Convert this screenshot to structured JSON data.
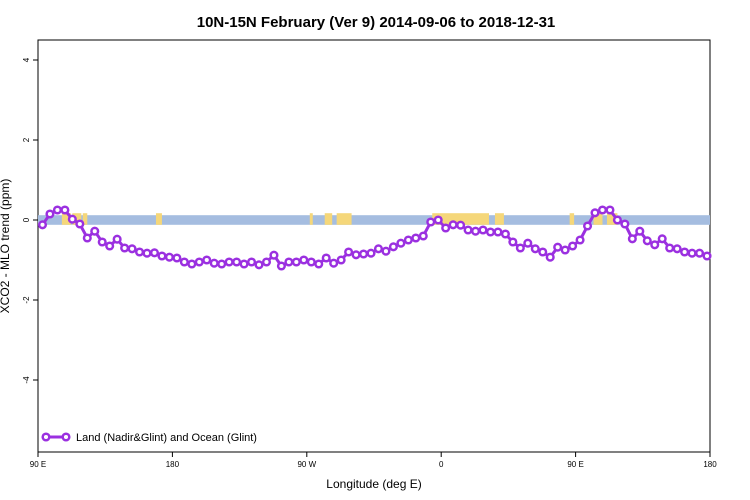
{
  "chart_data": {
    "type": "line",
    "title": "10N-15N February (Ver 9)   2014-09-06 to 2018-12-31",
    "xlabel": "Longitude (deg E)",
    "ylabel": "XCO2 - MLO trend (ppm)",
    "x_ticks": [
      {
        "value": 90,
        "label": "90 E"
      },
      {
        "value": 180,
        "label": "180"
      },
      {
        "value": 270,
        "label": "90 W"
      },
      {
        "value": 360,
        "label": "0"
      },
      {
        "value": 450,
        "label": "90 E"
      },
      {
        "value": 540,
        "label": "180"
      }
    ],
    "y_ticks": [
      -4,
      -2,
      0,
      2,
      4
    ],
    "xlim": [
      90,
      540
    ],
    "ylim": [
      -5.8,
      4.5
    ],
    "grid": false,
    "legend": {
      "position": "bottom-left",
      "entries": [
        "Land (Nadir&Glint) and Ocean (Glint)"
      ]
    },
    "series": [
      {
        "name": "Land (Nadir&Glint) and Ocean (Glint)",
        "color": "#9b30e0",
        "x": [
          93,
          98,
          103,
          108,
          113,
          118,
          123,
          128,
          133,
          138,
          143,
          148,
          153,
          158,
          163,
          168,
          173,
          178,
          183,
          188,
          193,
          198,
          203,
          208,
          213,
          218,
          223,
          228,
          233,
          238,
          243,
          248,
          253,
          258,
          263,
          268,
          273,
          278,
          283,
          288,
          293,
          298,
          303,
          308,
          313,
          318,
          323,
          328,
          333,
          338,
          343,
          348,
          353,
          358,
          363,
          368,
          373,
          378,
          383,
          388,
          393,
          398,
          403,
          408,
          413,
          418,
          423,
          428,
          433,
          438,
          443,
          448,
          453,
          458,
          463,
          468,
          473,
          478,
          483,
          488,
          493,
          498,
          503,
          508,
          513,
          518,
          523,
          528,
          533,
          538
        ],
        "y": [
          -0.12,
          0.15,
          0.25,
          0.25,
          0.02,
          -0.1,
          -0.45,
          -0.28,
          -0.55,
          -0.65,
          -0.48,
          -0.7,
          -0.72,
          -0.8,
          -0.83,
          -0.82,
          -0.9,
          -0.93,
          -0.95,
          -1.05,
          -1.1,
          -1.05,
          -1.0,
          -1.08,
          -1.1,
          -1.05,
          -1.05,
          -1.1,
          -1.05,
          -1.12,
          -1.05,
          -0.88,
          -1.15,
          -1.05,
          -1.05,
          -1.0,
          -1.05,
          -1.1,
          -0.95,
          -1.08,
          -1.0,
          -0.8,
          -0.87,
          -0.85,
          -0.83,
          -0.72,
          -0.78,
          -0.67,
          -0.58,
          -0.5,
          -0.45,
          -0.4,
          -0.05,
          -0.0,
          -0.2,
          -0.12,
          -0.13,
          -0.25,
          -0.28,
          -0.25,
          -0.3,
          -0.3,
          -0.35,
          -0.55,
          -0.7,
          -0.58,
          -0.72,
          -0.8,
          -0.93,
          -0.68,
          -0.75,
          -0.65,
          -0.5,
          -0.15,
          0.18,
          0.25,
          0.25,
          0.0,
          -0.1,
          -0.47,
          -0.28,
          -0.52,
          -0.62,
          -0.47,
          -0.7,
          -0.72,
          -0.8,
          -0.83,
          -0.83,
          -0.9
        ]
      }
    ],
    "zero_band": {
      "ocean_color": "#a5bde0",
      "land_color": "#f5d77a",
      "y_range": [
        -0.12,
        0.12
      ],
      "land_segments": [
        [
          106,
          112
        ],
        [
          113,
          119
        ],
        [
          120,
          123
        ],
        [
          169,
          173
        ],
        [
          272,
          274
        ],
        [
          282,
          287
        ],
        [
          290,
          300
        ],
        [
          354,
          392
        ],
        [
          396,
          402
        ],
        [
          446,
          449
        ],
        [
          462,
          468
        ],
        [
          471,
          478
        ]
      ]
    }
  }
}
